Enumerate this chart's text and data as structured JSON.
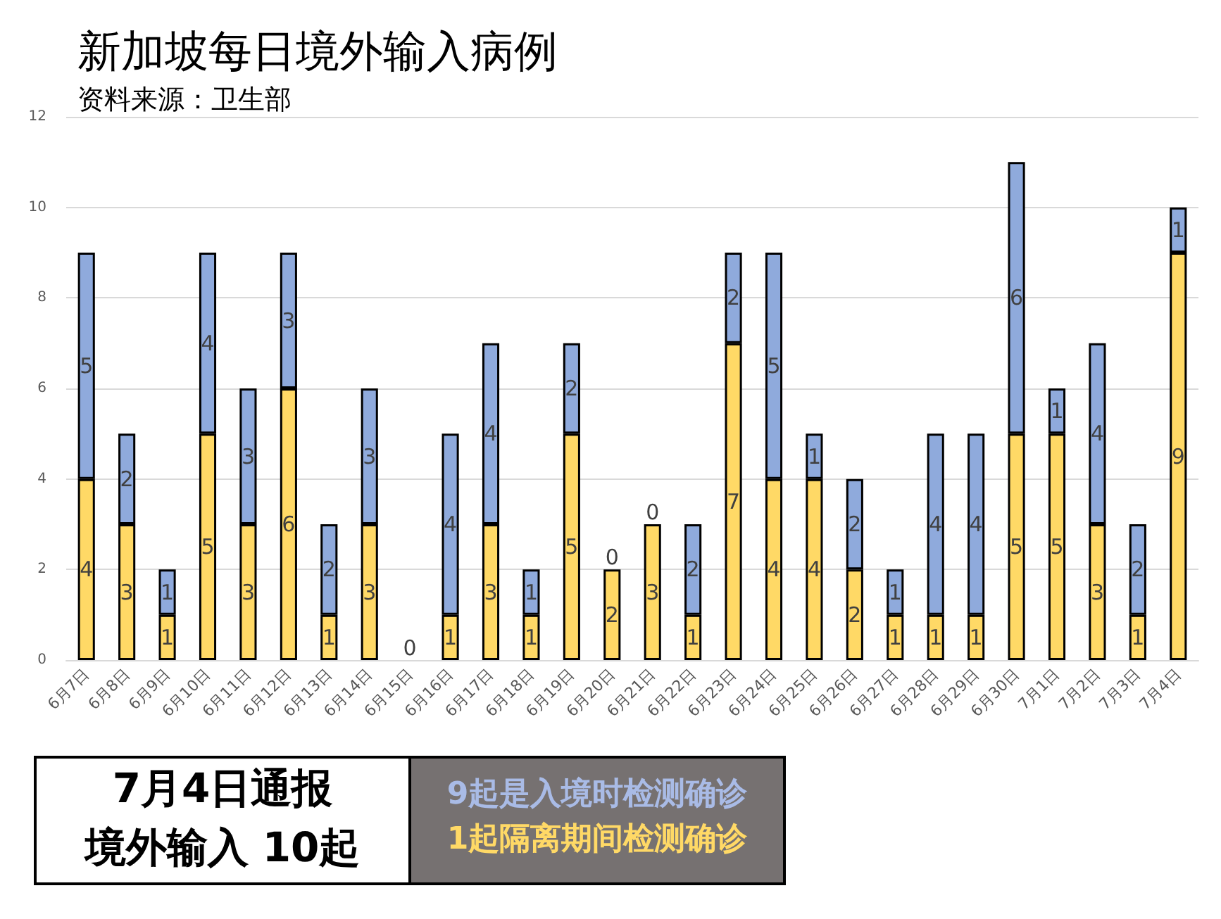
{
  "chart_data": {
    "type": "bar",
    "title": "新加坡每日境外输入病例",
    "subtitle": "资料来源：卫生部",
    "categories": [
      "6月7日",
      "6月8日",
      "6月9日",
      "6月10日",
      "6月11日",
      "6月12日",
      "6月13日",
      "6月14日",
      "6月15日",
      "6月16日",
      "6月17日",
      "6月18日",
      "6月19日",
      "6月20日",
      "6月21日",
      "6月22日",
      "6月23日",
      "6月24日",
      "6月25日",
      "6月26日",
      "6月27日",
      "6月28日",
      "6月29日",
      "6月30日",
      "7月1日",
      "7月2日",
      "7月3日",
      "7月4日"
    ],
    "series": [
      {
        "color": "#ffd966",
        "values": [
          4,
          3,
          1,
          5,
          3,
          6,
          1,
          3,
          0,
          1,
          3,
          1,
          5,
          2,
          3,
          1,
          7,
          4,
          4,
          2,
          1,
          1,
          1,
          5,
          5,
          3,
          1,
          9
        ],
        "value_labels": [
          "4",
          "3",
          "1",
          "5",
          "3",
          "6",
          "1",
          "3",
          "0",
          "1",
          "3",
          "1",
          "5",
          "2",
          "3",
          "1",
          "7",
          "4",
          "4",
          "2",
          "1",
          "1",
          "1",
          "5",
          "5",
          "3",
          "1",
          "9"
        ]
      },
      {
        "color": "#8faadc",
        "values": [
          5,
          2,
          1,
          4,
          3,
          3,
          2,
          3,
          0,
          4,
          4,
          1,
          2,
          0,
          0,
          2,
          2,
          5,
          1,
          2,
          1,
          4,
          4,
          6,
          1,
          4,
          2,
          1
        ],
        "value_labels": [
          "5",
          "2",
          "1",
          "4",
          "3",
          "3",
          "2",
          "3",
          null,
          "4",
          "4",
          "1",
          "2",
          "0",
          "0",
          "2",
          "2",
          "5",
          "1",
          "2",
          "1",
          "4",
          "4",
          "6",
          "1",
          "4",
          "2",
          "1"
        ]
      }
    ],
    "stacked": true,
    "ylim": [
      0,
      12
    ],
    "yticks": [
      0,
      2,
      4,
      6,
      8,
      10,
      12
    ],
    "grid": "y",
    "annotations": [
      "7月4日通报",
      "境外输入 10起",
      "9起是入境时检测确诊",
      "1起隔离期间检测确诊"
    ]
  }
}
